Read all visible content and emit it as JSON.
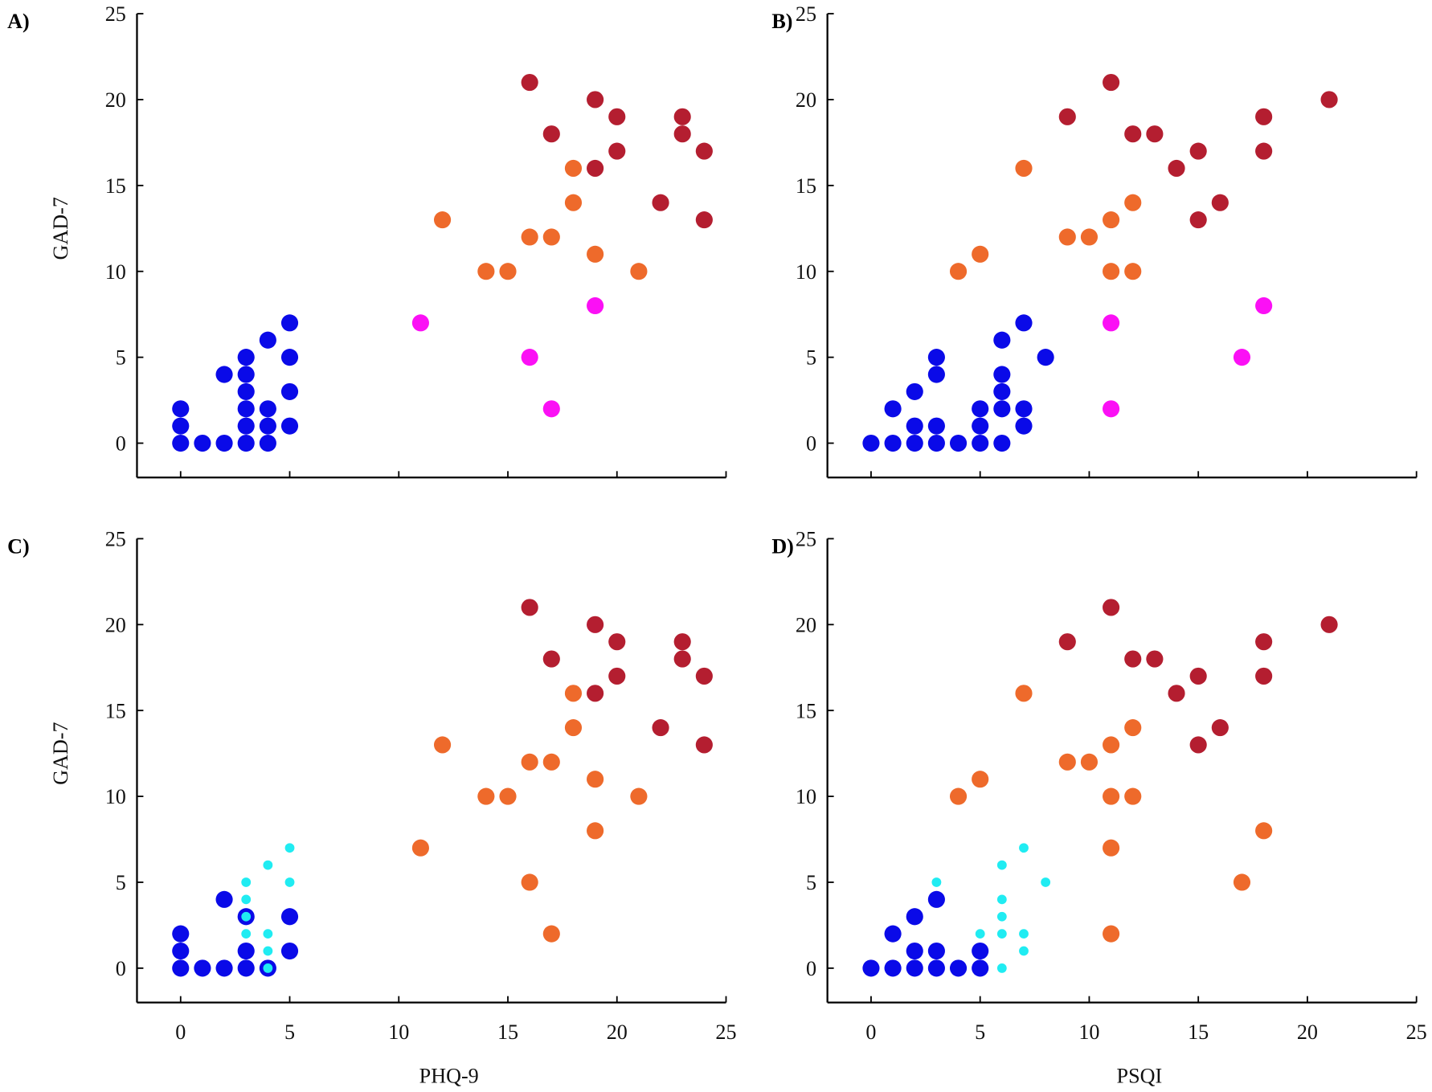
{
  "chart_data": [
    {
      "type": "scatter",
      "panel_label": "A)",
      "xlabel": "",
      "ylabel": "GAD-7",
      "xlim": [
        -2,
        25
      ],
      "ylim": [
        -2,
        25
      ],
      "xticks": [
        0,
        5,
        10,
        15,
        20,
        25
      ],
      "xticklabels": [],
      "yticks": [
        0,
        5,
        10,
        15,
        20,
        25
      ],
      "yticklabels": [
        "0",
        "5",
        "10",
        "15",
        "20",
        "25"
      ],
      "series": [
        {
          "color": "#0a0ae8",
          "small": false,
          "x": [
            0,
            0,
            0,
            1,
            2,
            2,
            3,
            3,
            3,
            3,
            3,
            3,
            4,
            4,
            4,
            4,
            5,
            5,
            5,
            5
          ],
          "y": [
            0,
            1,
            2,
            0,
            0,
            4,
            0,
            1,
            2,
            3,
            4,
            5,
            0,
            1,
            2,
            6,
            1,
            3,
            5,
            7
          ]
        },
        {
          "color": "#fb10f5",
          "small": false,
          "x": [
            11,
            16,
            17,
            19
          ],
          "y": [
            7,
            5,
            2,
            8
          ]
        },
        {
          "color": "#ee6a2b",
          "small": false,
          "x": [
            12,
            14,
            15,
            16,
            17,
            18,
            18,
            19,
            21
          ],
          "y": [
            13,
            10,
            10,
            12,
            12,
            16,
            14,
            11,
            10
          ]
        },
        {
          "color": "#b41e30",
          "small": false,
          "x": [
            16,
            17,
            19,
            19,
            20,
            20,
            22,
            23,
            23,
            24,
            24
          ],
          "y": [
            21,
            18,
            20,
            16,
            19,
            17,
            14,
            19,
            18,
            17,
            13
          ]
        }
      ]
    },
    {
      "type": "scatter",
      "panel_label": "B)",
      "xlabel": "",
      "ylabel": "",
      "xlim": [
        -2,
        25
      ],
      "ylim": [
        -2,
        25
      ],
      "xticks": [
        0,
        5,
        10,
        15,
        20,
        25
      ],
      "xticklabels": [],
      "yticks": [
        0,
        5,
        10,
        15,
        20,
        25
      ],
      "yticklabels": [
        "0",
        "5",
        "10",
        "15",
        "20",
        "25"
      ],
      "series": [
        {
          "color": "#0a0ae8",
          "small": false,
          "x": [
            0,
            1,
            1,
            2,
            2,
            2,
            3,
            3,
            3,
            3,
            4,
            5,
            5,
            5,
            6,
            6,
            6,
            6,
            6,
            7,
            7,
            7,
            8
          ],
          "y": [
            0,
            0,
            2,
            0,
            1,
            3,
            0,
            1,
            4,
            5,
            0,
            0,
            1,
            2,
            0,
            2,
            3,
            4,
            6,
            1,
            2,
            7,
            5
          ]
        },
        {
          "color": "#fb10f5",
          "small": false,
          "x": [
            11,
            11,
            17,
            18
          ],
          "y": [
            7,
            2,
            5,
            8
          ]
        },
        {
          "color": "#ee6a2b",
          "small": false,
          "x": [
            4,
            5,
            7,
            9,
            10,
            11,
            11,
            12,
            12
          ],
          "y": [
            10,
            11,
            16,
            12,
            12,
            13,
            10,
            14,
            10
          ]
        },
        {
          "color": "#b41e30",
          "small": false,
          "x": [
            9,
            11,
            12,
            13,
            14,
            15,
            15,
            16,
            18,
            18,
            21
          ],
          "y": [
            19,
            21,
            18,
            18,
            16,
            17,
            13,
            14,
            19,
            17,
            20
          ]
        }
      ]
    },
    {
      "type": "scatter",
      "panel_label": "C)",
      "xlabel": "PHQ-9",
      "ylabel": "GAD-7",
      "xlim": [
        -2,
        25
      ],
      "ylim": [
        -2,
        25
      ],
      "xticks": [
        0,
        5,
        10,
        15,
        20,
        25
      ],
      "xticklabels": [
        "0",
        "5",
        "10",
        "15",
        "20",
        "25"
      ],
      "yticks": [
        0,
        5,
        10,
        15,
        20,
        25
      ],
      "yticklabels": [
        "0",
        "5",
        "10",
        "15",
        "20",
        "25"
      ],
      "series": [
        {
          "color": "#0a0ae8",
          "small": false,
          "x": [
            0,
            0,
            0,
            1,
            2,
            2,
            3,
            3,
            3,
            4,
            5,
            5
          ],
          "y": [
            0,
            1,
            2,
            0,
            0,
            4,
            0,
            1,
            3,
            0,
            1,
            3
          ]
        },
        {
          "color": "#20ecf2",
          "small": true,
          "x": [
            3,
            3,
            3,
            3,
            4,
            4,
            4,
            4,
            5,
            5
          ],
          "y": [
            5,
            4,
            3,
            2,
            6,
            2,
            1,
            0,
            7,
            5
          ]
        },
        {
          "color": "#ee6a2b",
          "small": false,
          "x": [
            11,
            12,
            14,
            15,
            16,
            16,
            17,
            17,
            18,
            18,
            19,
            19,
            21
          ],
          "y": [
            7,
            13,
            10,
            10,
            12,
            5,
            12,
            2,
            16,
            14,
            11,
            8,
            10
          ]
        },
        {
          "color": "#b41e30",
          "small": false,
          "x": [
            16,
            17,
            19,
            19,
            20,
            20,
            22,
            23,
            23,
            24,
            24
          ],
          "y": [
            21,
            18,
            20,
            16,
            19,
            17,
            14,
            19,
            18,
            17,
            13
          ]
        }
      ]
    },
    {
      "type": "scatter",
      "panel_label": "D)",
      "xlabel": "PSQI",
      "ylabel": "",
      "xlim": [
        -2,
        25
      ],
      "ylim": [
        -2,
        25
      ],
      "xticks": [
        0,
        5,
        10,
        15,
        20,
        25
      ],
      "xticklabels": [
        "0",
        "5",
        "10",
        "15",
        "20",
        "25"
      ],
      "yticks": [
        0,
        5,
        10,
        15,
        20,
        25
      ],
      "yticklabels": [
        "0",
        "5",
        "10",
        "15",
        "20",
        "25"
      ],
      "series": [
        {
          "color": "#0a0ae8",
          "small": false,
          "x": [
            0,
            1,
            1,
            2,
            2,
            2,
            3,
            3,
            3,
            4,
            5,
            5
          ],
          "y": [
            0,
            0,
            2,
            0,
            1,
            3,
            0,
            1,
            4,
            0,
            0,
            1
          ]
        },
        {
          "color": "#20ecf2",
          "small": true,
          "x": [
            3,
            5,
            6,
            6,
            6,
            6,
            6,
            7,
            7,
            7,
            8
          ],
          "y": [
            5,
            2,
            0,
            2,
            3,
            4,
            6,
            1,
            2,
            7,
            5
          ]
        },
        {
          "color": "#ee6a2b",
          "small": false,
          "x": [
            4,
            5,
            7,
            9,
            10,
            11,
            11,
            11,
            11,
            12,
            12,
            17,
            18
          ],
          "y": [
            10,
            11,
            16,
            12,
            12,
            13,
            10,
            7,
            2,
            14,
            10,
            5,
            8
          ]
        },
        {
          "color": "#b41e30",
          "small": false,
          "x": [
            9,
            11,
            12,
            13,
            14,
            15,
            15,
            16,
            18,
            18,
            21
          ],
          "y": [
            19,
            21,
            18,
            18,
            16,
            17,
            13,
            14,
            19,
            17,
            20
          ]
        }
      ]
    }
  ]
}
